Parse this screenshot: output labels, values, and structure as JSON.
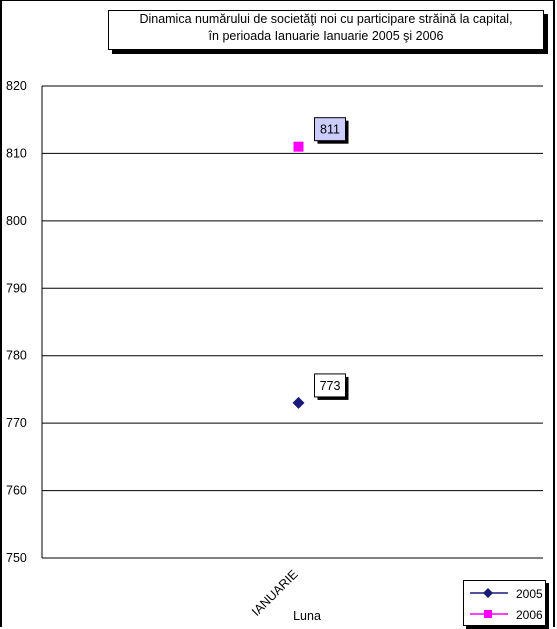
{
  "chart_data": {
    "type": "scatter",
    "title": [
      "Dinamica numărului de societăţi noi cu participare străină la capital,",
      "în perioada Ianuarie Ianuarie  2005 şi 2006"
    ],
    "xlabel": "Luna",
    "ylabel": "",
    "categories": [
      "IANUARIE"
    ],
    "ylim": [
      750,
      820
    ],
    "yticks": [
      750,
      760,
      770,
      780,
      790,
      800,
      810,
      820
    ],
    "grid": true,
    "legend_position": "bottom-right",
    "series": [
      {
        "name": "2005",
        "values": [
          773
        ],
        "color": "#1a1a7a",
        "marker": "diamond",
        "data_labels": [
          "773"
        ],
        "label_bg": "#ffffff"
      },
      {
        "name": "2006",
        "values": [
          811
        ],
        "color": "#ff00ff",
        "marker": "square",
        "data_labels": [
          "811"
        ],
        "label_bg": "#ccccff"
      }
    ]
  }
}
